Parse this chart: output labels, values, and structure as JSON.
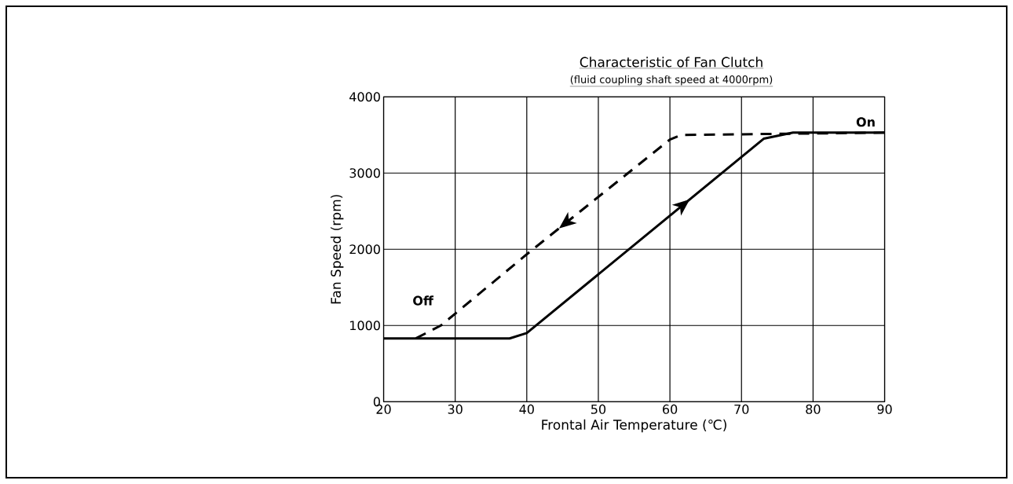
{
  "chart_data": {
    "type": "line",
    "title": "Characteristic of Fan Clutch",
    "subtitle": "(fluid coupling shaft speed at 4000rpm)",
    "xlabel": "Frontal Air Temperature (℃)",
    "ylabel": "Fan Speed (rpm)",
    "xlim": [
      20,
      90
    ],
    "ylim": [
      0,
      4000
    ],
    "xticks": [
      20,
      30,
      40,
      50,
      60,
      70,
      80,
      90
    ],
    "yticks": [
      0,
      1000,
      2000,
      3000,
      4000
    ],
    "grid": true,
    "legend": false,
    "marker": "none",
    "series": [
      {
        "name": "On",
        "color": "#000000",
        "line_style": "solid",
        "x": [
          20,
          37.6,
          40,
          73.1,
          77.2,
          90
        ],
        "values": [
          830,
          830,
          900,
          3450,
          3530,
          3530
        ]
      },
      {
        "name": "Off",
        "color": "#000000",
        "line_style": "dashed",
        "x": [
          90,
          61.6,
          60,
          40.6,
          28,
          24.5
        ],
        "values": [
          3530,
          3500,
          3440,
          1980,
          1000,
          830
        ]
      }
    ]
  }
}
